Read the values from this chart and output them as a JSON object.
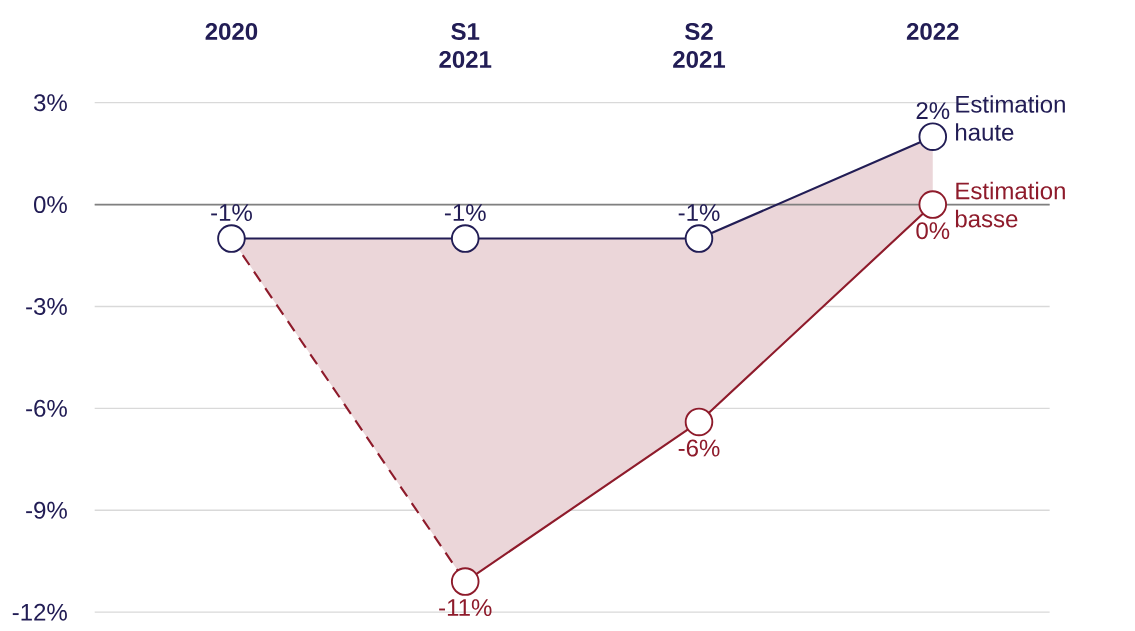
{
  "chart_data": {
    "type": "line",
    "categories": [
      "2020",
      "S1 2021",
      "S2 2021",
      "2022"
    ],
    "ylim": [
      -12,
      3
    ],
    "yticks": [
      {
        "value": -12,
        "label": "-12%"
      },
      {
        "value": -9,
        "label": "-9%"
      },
      {
        "value": -6,
        "label": "-6%"
      },
      {
        "value": -3,
        "label": "-3%"
      },
      {
        "value": 0,
        "label": "0%"
      },
      {
        "value": 3,
        "label": "3%"
      }
    ],
    "grid": "y",
    "marker": "circle",
    "line_style": "solid",
    "legend": "right",
    "ref_lines": [
      {
        "axis": "y",
        "value": 0,
        "color": "#808080"
      }
    ],
    "series": [
      {
        "name": "Estimation haute",
        "color": "#221d55",
        "values": [
          -1,
          -1,
          -1,
          2
        ],
        "value_labels": [
          "-1%",
          "-1%",
          "-1%",
          "2%"
        ]
      },
      {
        "name": "Estimation basse",
        "color": "#8e1b2b",
        "values": [
          null,
          -11.1,
          -6.4,
          0
        ],
        "value_labels": [
          null,
          "-11%",
          "-6%",
          "0%"
        ],
        "lower": [
          -1,
          -11.1,
          -6.4,
          0
        ],
        "upper": [
          -1,
          -1,
          -1,
          2
        ]
      },
      {
        "color": "#8e1b2b",
        "values": [
          -1,
          -11.1,
          null,
          null
        ],
        "line_style": "dashed",
        "marker": "none"
      }
    ]
  }
}
